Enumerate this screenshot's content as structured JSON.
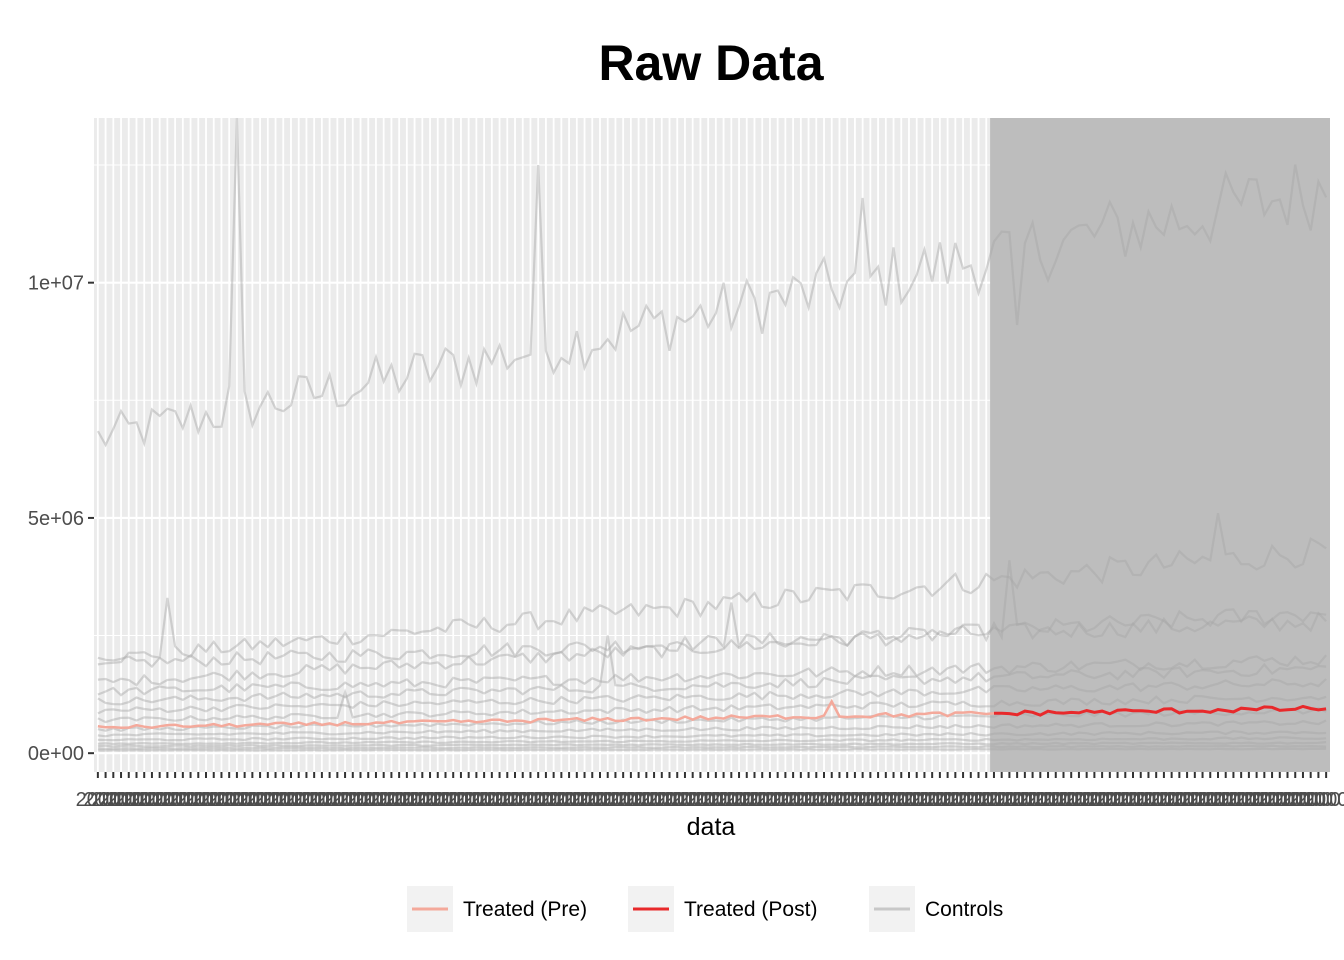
{
  "chart_data": {
    "type": "line",
    "title": "Raw Data",
    "xlabel": "data",
    "ylabel": "",
    "ylim": [
      -400000,
      13500000
    ],
    "yticks": [
      {
        "value": 0,
        "label": "0e+00"
      },
      {
        "value": 5000000,
        "label": "5e+06"
      },
      {
        "value": 10000000,
        "label": "1e+07"
      }
    ],
    "x_period_count": 160,
    "treatment_start_period": 116,
    "x_tick_label_text": "2000",
    "grid": true,
    "legend_position": "bottom",
    "colors": {
      "panel_background": "#ebebeb",
      "post_shade": "#bdbdbd",
      "treated_pre": "#f4a99b",
      "treated_post": "#e8292b",
      "controls": "#a6a6a6"
    },
    "legend": [
      {
        "label": "Treated (Pre)",
        "color": "#f4a99b"
      },
      {
        "label": "Treated (Post)",
        "color": "#e8292b"
      },
      {
        "label": "Controls",
        "color": "#c8c8c8"
      }
    ],
    "series": [
      {
        "name": "Controls",
        "role": "control",
        "base_start": 6700000,
        "base_end": 12000000,
        "spikes": [
          [
            18,
            13500000
          ],
          [
            17,
            7800000
          ],
          [
            57,
            12500000
          ],
          [
            99,
            11800000
          ],
          [
            119,
            9100000
          ]
        ]
      },
      {
        "name": "Controls",
        "role": "control",
        "base_start": 2000000,
        "base_end": 4300000,
        "spikes": [
          [
            9,
            3300000
          ],
          [
            145,
            5100000
          ]
        ]
      },
      {
        "name": "Controls",
        "role": "control",
        "base_start": 1900000,
        "base_end": 2800000,
        "spikes": [
          [
            82,
            3200000
          ]
        ]
      },
      {
        "name": "Controls",
        "role": "control",
        "base_start": 1500000,
        "base_end": 3000000,
        "spikes": [
          [
            118,
            4100000
          ]
        ]
      },
      {
        "name": "Controls",
        "role": "control",
        "base_start": 1300000,
        "base_end": 2000000,
        "spikes": []
      },
      {
        "name": "Controls",
        "role": "control",
        "base_start": 1100000,
        "base_end": 1800000,
        "spikes": [
          [
            66,
            2500000
          ]
        ]
      },
      {
        "name": "Controls",
        "role": "control",
        "base_start": 900000,
        "base_end": 1500000,
        "spikes": []
      },
      {
        "name": "Controls",
        "role": "control",
        "base_start": 700000,
        "base_end": 1200000,
        "spikes": [
          [
            32,
            1300000
          ]
        ]
      },
      {
        "name": "Controls",
        "role": "control",
        "base_start": 500000,
        "base_end": 900000,
        "spikes": []
      },
      {
        "name": "Controls",
        "role": "control",
        "base_start": 380000,
        "base_end": 650000,
        "spikes": []
      },
      {
        "name": "Controls",
        "role": "control",
        "base_start": 280000,
        "base_end": 450000,
        "spikes": []
      },
      {
        "name": "Controls",
        "role": "control",
        "base_start": 200000,
        "base_end": 320000,
        "spikes": []
      },
      {
        "name": "Controls",
        "role": "control",
        "base_start": 150000,
        "base_end": 220000,
        "spikes": []
      },
      {
        "name": "Controls",
        "role": "control",
        "base_start": 100000,
        "base_end": 150000,
        "spikes": []
      },
      {
        "name": "Controls",
        "role": "control",
        "base_start": 60000,
        "base_end": 90000,
        "spikes": []
      },
      {
        "name": "Treated",
        "role": "treated",
        "base_start": 550000,
        "base_end": 950000,
        "spikes": [
          [
            95,
            1100000
          ]
        ]
      }
    ]
  }
}
